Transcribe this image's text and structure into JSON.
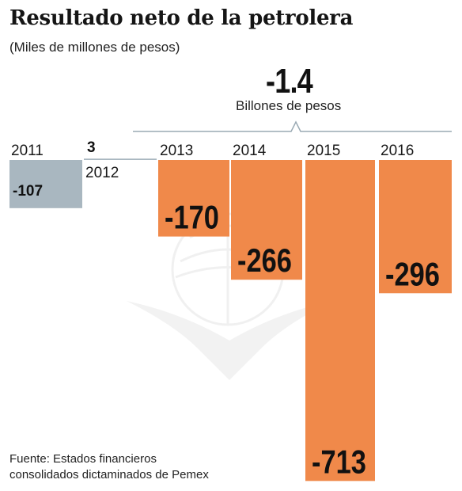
{
  "title": "Resultado neto de la petrolera",
  "subtitle": "(Miles de millones de pesos)",
  "total": {
    "value": "-1.4",
    "unit": "Billones de pesos"
  },
  "source": [
    "Fuente: Estados financieros",
    "consolidados dictaminados de Pemex"
  ],
  "colors": {
    "gray": "#a9b7c0",
    "orange": "#f0894a",
    "line": "#9aaab4"
  },
  "chart_data": {
    "type": "bar",
    "categories": [
      "2011",
      "2012",
      "2013",
      "2014",
      "2015",
      "2016"
    ],
    "values": [
      -107,
      3,
      -170,
      -266,
      -713,
      -296
    ],
    "labels": [
      "-107",
      "3",
      "-170",
      "-266",
      "-713",
      "-296"
    ],
    "bar_colors": [
      "gray",
      "gray",
      "orange",
      "orange",
      "orange",
      "orange"
    ],
    "bracket": {
      "from": "2013",
      "to": "2016",
      "label": "-1.4"
    }
  }
}
